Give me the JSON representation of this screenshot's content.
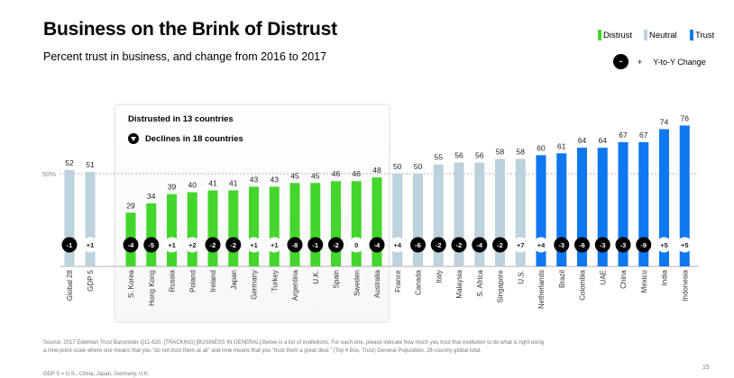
{
  "header": {
    "title": "Business on the Brink of Distrust",
    "subtitle": "Percent trust in business, and change from 2016 to 2017"
  },
  "legend": {
    "items": [
      {
        "label": "Distrust",
        "color": "#44d62c"
      },
      {
        "label": "Neutral",
        "color": "#bcd2dc"
      },
      {
        "label": "Trust",
        "color": "#0f77ef"
      }
    ],
    "yoy_minus": "-",
    "yoy_plus": "+",
    "yoy_label": "Y-to-Y Change"
  },
  "panel": {
    "heading": "Distrusted in 13 countries",
    "declines": "Declines in 18 countries"
  },
  "chart_data": {
    "type": "bar",
    "title": "Business on the Brink of Distrust",
    "subtitle": "Percent trust in business, and change from 2016 to 2017",
    "reference_line": {
      "value": 50,
      "label": "50%"
    },
    "ylim": [
      0,
      80
    ],
    "grid": false,
    "legend_position": "top-right",
    "categories": [
      "Global 28",
      "GDP 5",
      "S. Korea",
      "Hong Kong",
      "Russia",
      "Poland",
      "Ireland",
      "Japan",
      "Germany",
      "Turkey",
      "Argentina",
      "U.K.",
      "Spain",
      "Sweden",
      "Australia",
      "France",
      "Canada",
      "Italy",
      "Malaysia",
      "S. Africa",
      "Singapore",
      "U.S.",
      "Netherlands",
      "Brazil",
      "Colombia",
      "UAE",
      "China",
      "Mexico",
      "India",
      "Indonesia"
    ],
    "values": [
      52,
      51,
      29,
      34,
      39,
      40,
      41,
      41,
      43,
      43,
      45,
      45,
      46,
      46,
      48,
      50,
      50,
      55,
      56,
      56,
      58,
      58,
      60,
      61,
      64,
      64,
      67,
      67,
      74,
      76
    ],
    "changes": [
      "-1",
      "+1",
      "-4",
      "-5",
      "+1",
      "+2",
      "-2",
      "-2",
      "+1",
      "+1",
      "-8",
      "-1",
      "-2",
      "0",
      "-4",
      "+4",
      "-6",
      "-2",
      "-2",
      "-4",
      "-2",
      "+7",
      "+4",
      "-3",
      "-6",
      "-3",
      "-3",
      "-9",
      "+5",
      "+5"
    ],
    "groups": [
      "neutral",
      "neutral",
      "distrust",
      "distrust",
      "distrust",
      "distrust",
      "distrust",
      "distrust",
      "distrust",
      "distrust",
      "distrust",
      "distrust",
      "distrust",
      "distrust",
      "distrust",
      "neutral",
      "neutral",
      "neutral",
      "neutral",
      "neutral",
      "neutral",
      "neutral",
      "trust",
      "trust",
      "trust",
      "trust",
      "trust",
      "trust",
      "trust",
      "trust"
    ]
  },
  "footer": {
    "source": "Source: 2017 Edelman Trust Barometer Q11-620. [TRACKING] [BUSINESS IN GENERAL] Below is a list of institutions. For each one, please indicate how much you trust that institution to do what is right using a nine-point scale where one means that you \"do not trust them at all\" and nine means that you \"trust them a great deal.\" (Top 4 Box, Trust) General Population, 28-country global total.",
    "gdp_note": "GDP 5 = U.S., China, Japan, Germany, U.K.",
    "page_number": "15"
  }
}
